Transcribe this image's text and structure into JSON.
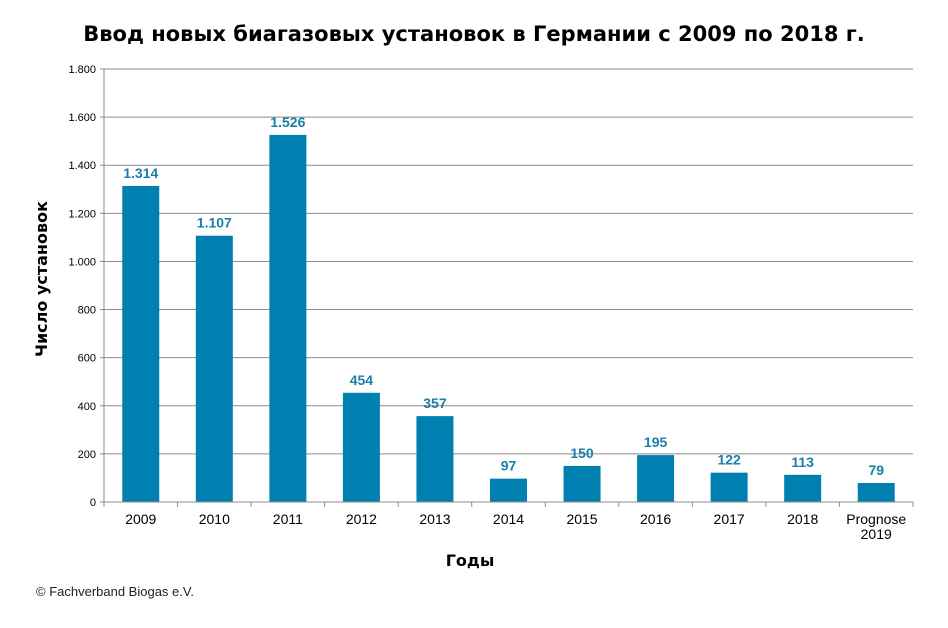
{
  "chart_data": {
    "type": "bar",
    "title": "Ввод новых биагазовых установок в Германии с 2009 по 2018 г.",
    "xlabel": "Годы",
    "ylabel": "Число установок",
    "categories": [
      "2009",
      "2010",
      "2011",
      "2012",
      "2013",
      "2014",
      "2015",
      "2016",
      "2017",
      "2018",
      "Prognose 2019"
    ],
    "values": [
      1314,
      1107,
      1526,
      454,
      357,
      97,
      150,
      195,
      122,
      113,
      79
    ],
    "value_labels": [
      "1.314",
      "1.107",
      "1.526",
      "454",
      "357",
      "97",
      "150",
      "195",
      "122",
      "113",
      "79"
    ],
    "ylim": [
      0,
      1800
    ],
    "yticks": [
      0,
      200,
      400,
      600,
      800,
      1000,
      1200,
      1400,
      1600,
      1800
    ],
    "ytick_labels": [
      "0",
      "200",
      "400",
      "600",
      "800",
      "1.000",
      "1.200",
      "1.400",
      "1.600",
      "1.800"
    ],
    "grid": true,
    "legend": "none",
    "bar_color": "#0080b0",
    "data_label_color": "#1a7fa8"
  },
  "credit": "© Fachverband Biogas e.V."
}
